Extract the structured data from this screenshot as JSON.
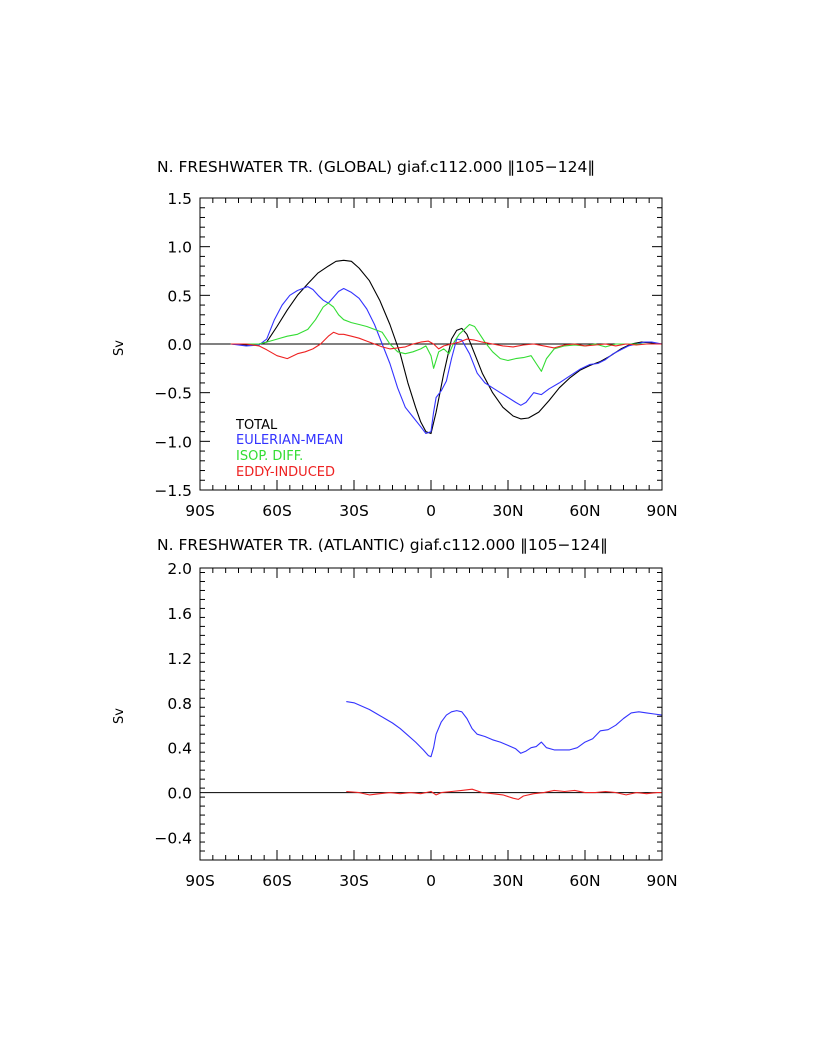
{
  "chart_data": [
    {
      "type": "line",
      "title": "N. FRESHWATER TR. (GLOBAL) giaf.c112.000 ‖105−124‖",
      "xlabel": "",
      "ylabel": "Sv",
      "xlim": [
        -90,
        90
      ],
      "ylim": [
        -1.5,
        1.5
      ],
      "xticks": [
        -90,
        -60,
        -30,
        0,
        30,
        60,
        90
      ],
      "xtick_labels": [
        "90S",
        "60S",
        "30S",
        "0",
        "30N",
        "60N",
        "90N"
      ],
      "yticks": [
        -1.5,
        -1.0,
        -0.5,
        0.0,
        0.5,
        1.0,
        1.5
      ],
      "ytick_labels": [
        "−1.5",
        "−1.0",
        "−0.5",
        "0.0",
        "0.5",
        "1.0",
        "1.5"
      ],
      "legend_position": "bottom-left",
      "series": [
        {
          "name": "TOTAL",
          "color": "#000000",
          "x": [
            -78,
            -72,
            -67,
            -64,
            -60,
            -56,
            -52,
            -48,
            -44,
            -40,
            -37,
            -34,
            -31,
            -28,
            -24,
            -20,
            -16,
            -12,
            -9,
            -6,
            -4,
            -2,
            0,
            2,
            5,
            8,
            10,
            12,
            14,
            17,
            20,
            24,
            28,
            32,
            35,
            38,
            42,
            46,
            50,
            54,
            58,
            62,
            66,
            70,
            74,
            78,
            82,
            86,
            90
          ],
          "y": [
            0.0,
            -0.01,
            0.0,
            0.02,
            0.18,
            0.35,
            0.5,
            0.62,
            0.73,
            0.8,
            0.85,
            0.86,
            0.85,
            0.78,
            0.65,
            0.45,
            0.2,
            -0.1,
            -0.4,
            -0.65,
            -0.8,
            -0.9,
            -0.92,
            -0.7,
            -0.3,
            0.05,
            0.14,
            0.16,
            0.1,
            -0.1,
            -0.3,
            -0.5,
            -0.65,
            -0.74,
            -0.77,
            -0.76,
            -0.7,
            -0.58,
            -0.45,
            -0.35,
            -0.27,
            -0.22,
            -0.18,
            -0.12,
            -0.05,
            0.0,
            0.02,
            0.01,
            0.0
          ]
        },
        {
          "name": "EULERIAN-MEAN",
          "color": "#3333ff",
          "x": [
            -78,
            -72,
            -67,
            -64,
            -61,
            -58,
            -55,
            -52,
            -50,
            -48,
            -46,
            -44,
            -42,
            -40,
            -38,
            -36,
            -34,
            -31,
            -28,
            -25,
            -22,
            -19,
            -16,
            -13,
            -10,
            -7,
            -4,
            -2,
            0,
            1,
            2,
            4,
            6,
            8,
            10,
            12,
            15,
            18,
            21,
            24,
            27,
            30,
            33,
            35,
            37,
            40,
            43,
            46,
            50,
            54,
            58,
            62,
            65,
            68,
            71,
            74,
            77,
            80,
            83,
            86,
            90
          ],
          "y": [
            0.0,
            -0.02,
            -0.01,
            0.05,
            0.25,
            0.4,
            0.5,
            0.55,
            0.57,
            0.59,
            0.56,
            0.5,
            0.45,
            0.42,
            0.48,
            0.54,
            0.57,
            0.53,
            0.47,
            0.36,
            0.2,
            0.0,
            -0.2,
            -0.45,
            -0.65,
            -0.75,
            -0.85,
            -0.92,
            -0.9,
            -0.7,
            -0.55,
            -0.48,
            -0.38,
            -0.15,
            0.05,
            0.04,
            -0.1,
            -0.3,
            -0.4,
            -0.45,
            -0.5,
            -0.55,
            -0.6,
            -0.63,
            -0.6,
            -0.5,
            -0.52,
            -0.46,
            -0.4,
            -0.33,
            -0.26,
            -0.21,
            -0.2,
            -0.16,
            -0.1,
            -0.06,
            -0.02,
            0.0,
            0.02,
            0.02,
            0.0
          ]
        },
        {
          "name": "ISOP. DIFF.",
          "color": "#33dd33",
          "x": [
            -78,
            -72,
            -67,
            -64,
            -60,
            -56,
            -52,
            -48,
            -45,
            -42,
            -40,
            -38,
            -36,
            -34,
            -31,
            -28,
            -25,
            -22,
            -19,
            -16,
            -13,
            -10,
            -7,
            -4,
            -2,
            0,
            1,
            3,
            5,
            7,
            9,
            11,
            13,
            15,
            17,
            19,
            21,
            24,
            27,
            30,
            33,
            36,
            39,
            41,
            43,
            45,
            48,
            52,
            56,
            60,
            64,
            68,
            72,
            76,
            80,
            84,
            88,
            90
          ],
          "y": [
            0.0,
            0.0,
            0.0,
            0.02,
            0.05,
            0.08,
            0.1,
            0.15,
            0.25,
            0.38,
            0.42,
            0.38,
            0.3,
            0.25,
            0.22,
            0.2,
            0.18,
            0.15,
            0.12,
            0.0,
            -0.08,
            -0.1,
            -0.08,
            -0.05,
            -0.02,
            -0.12,
            -0.25,
            -0.08,
            -0.05,
            -0.1,
            0.02,
            0.1,
            0.15,
            0.2,
            0.18,
            0.1,
            0.02,
            -0.08,
            -0.15,
            -0.17,
            -0.15,
            -0.14,
            -0.12,
            -0.2,
            -0.28,
            -0.15,
            -0.05,
            -0.02,
            -0.01,
            -0.02,
            0.0,
            -0.03,
            0.0,
            0.0,
            0.0,
            0.0,
            0.0,
            0.0
          ]
        },
        {
          "name": "EDDY-INDUCED",
          "color": "#ee2222",
          "x": [
            -78,
            -72,
            -67,
            -64,
            -60,
            -56,
            -52,
            -49,
            -46,
            -43,
            -40,
            -38,
            -36,
            -34,
            -31,
            -28,
            -25,
            -22,
            -19,
            -16,
            -13,
            -10,
            -7,
            -4,
            -1,
            1,
            3,
            5,
            8,
            11,
            14,
            17,
            20,
            24,
            28,
            32,
            36,
            40,
            44,
            48,
            52,
            56,
            60,
            64,
            68,
            72,
            76,
            80,
            84,
            88,
            90
          ],
          "y": [
            0.0,
            0.0,
            -0.02,
            -0.06,
            -0.12,
            -0.15,
            -0.1,
            -0.08,
            -0.05,
            0.0,
            0.08,
            0.12,
            0.1,
            0.1,
            0.08,
            0.06,
            0.03,
            0.0,
            -0.03,
            -0.05,
            -0.04,
            -0.03,
            0.0,
            0.02,
            0.03,
            0.0,
            -0.05,
            -0.02,
            0.0,
            0.02,
            0.05,
            0.04,
            0.02,
            0.0,
            -0.02,
            -0.03,
            -0.01,
            0.0,
            -0.02,
            -0.04,
            -0.01,
            0.0,
            -0.02,
            -0.01,
            0.0,
            -0.02,
            0.0,
            -0.01,
            0.0,
            0.0,
            0.0
          ]
        }
      ]
    },
    {
      "type": "line",
      "title": "N. FRESHWATER TR. (ATLANTIC) giaf.c112.000 ‖105−124‖",
      "xlabel": "",
      "ylabel": "Sv",
      "xlim": [
        -90,
        90
      ],
      "ylim": [
        -0.6,
        2.0
      ],
      "xticks": [
        -90,
        -60,
        -30,
        0,
        30,
        60,
        90
      ],
      "xtick_labels": [
        "90S",
        "60S",
        "30S",
        "0",
        "30N",
        "60N",
        "90N"
      ],
      "yticks": [
        -0.4,
        0.0,
        0.4,
        0.8,
        1.2,
        1.6,
        2.0
      ],
      "ytick_labels": [
        "−0.4",
        "0.0",
        "0.4",
        "0.8",
        "1.2",
        "1.6",
        "2.0"
      ],
      "series": [
        {
          "name": "EULERIAN-MEAN",
          "color": "#3333ff",
          "x": [
            -33,
            -30,
            -27,
            -24,
            -21,
            -18,
            -15,
            -12,
            -9,
            -6,
            -3,
            -1,
            0,
            1,
            2,
            4,
            6,
            8,
            10,
            12,
            14,
            16,
            18,
            21,
            24,
            27,
            30,
            33,
            35,
            37,
            39,
            41,
            43,
            45,
            48,
            51,
            54,
            57,
            60,
            63,
            66,
            69,
            72,
            75,
            78,
            81,
            84,
            87,
            90
          ],
          "y": [
            0.81,
            0.8,
            0.77,
            0.74,
            0.7,
            0.66,
            0.62,
            0.57,
            0.51,
            0.45,
            0.38,
            0.33,
            0.32,
            0.4,
            0.52,
            0.63,
            0.69,
            0.72,
            0.73,
            0.72,
            0.66,
            0.57,
            0.52,
            0.5,
            0.47,
            0.45,
            0.42,
            0.39,
            0.35,
            0.37,
            0.4,
            0.41,
            0.45,
            0.4,
            0.38,
            0.38,
            0.38,
            0.4,
            0.45,
            0.48,
            0.55,
            0.56,
            0.6,
            0.66,
            0.71,
            0.72,
            0.71,
            0.7,
            0.69
          ]
        },
        {
          "name": "EDDY-INDUCED",
          "color": "#ee2222",
          "x": [
            -33,
            -28,
            -24,
            -20,
            -16,
            -12,
            -8,
            -4,
            0,
            2,
            4,
            8,
            12,
            16,
            20,
            24,
            28,
            32,
            34,
            36,
            40,
            44,
            48,
            52,
            56,
            60,
            64,
            68,
            72,
            76,
            80,
            84,
            88,
            90
          ],
          "y": [
            0.01,
            0.0,
            -0.02,
            -0.01,
            0.0,
            -0.01,
            0.0,
            -0.01,
            0.01,
            -0.02,
            0.0,
            0.01,
            0.02,
            0.03,
            0.0,
            -0.01,
            -0.02,
            -0.05,
            -0.06,
            -0.03,
            -0.01,
            0.0,
            0.02,
            0.01,
            0.02,
            0.0,
            0.0,
            0.01,
            0.0,
            -0.02,
            0.0,
            -0.01,
            0.0,
            0.0
          ]
        }
      ]
    }
  ]
}
